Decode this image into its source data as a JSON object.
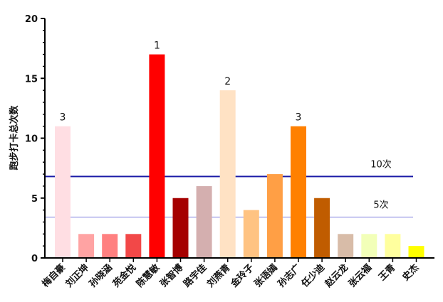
{
  "chart_data": {
    "type": "bar",
    "title": "",
    "xlabel": "",
    "ylabel": "跑步打卡总次数",
    "ylim": [
      0,
      20
    ],
    "yticks": [
      0,
      5,
      10,
      15,
      20
    ],
    "categories": [
      "梅自豪",
      "刘正坤",
      "孙晓涵",
      "苑金悦",
      "陈慧敏",
      "张智博",
      "路宇佳",
      "刘燕青",
      "金玲子",
      "张语嫣",
      "孙志广",
      "任少迪",
      "赵云龙",
      "张云福",
      "王青",
      "史杰"
    ],
    "values": [
      11,
      2,
      2,
      2,
      17,
      5,
      6,
      14,
      4,
      7,
      11,
      5,
      2,
      2,
      2,
      1
    ],
    "colors": [
      "#FFDEE3",
      "#FFA3A3",
      "#FF8080",
      "#F24848",
      "#FF0000",
      "#A50000",
      "#D4AFAF",
      "#FFE2C4",
      "#FFC382",
      "#FF9F45",
      "#FF8000",
      "#C05C00",
      "#D8BCA8",
      "#F2FFB8",
      "#FFFF9E",
      "#FFFF00"
    ],
    "data_labels": [
      {
        "index": 0,
        "text": "3"
      },
      {
        "index": 4,
        "text": "1"
      },
      {
        "index": 7,
        "text": "2"
      },
      {
        "index": 10,
        "text": "3"
      }
    ],
    "reference_lines": [
      {
        "value": 6.8,
        "label": "10次",
        "color": "#1A1AA6"
      },
      {
        "value": 3.4,
        "label": "5次",
        "color": "#C4C4F0"
      }
    ],
    "grid": false,
    "legend": "none"
  }
}
